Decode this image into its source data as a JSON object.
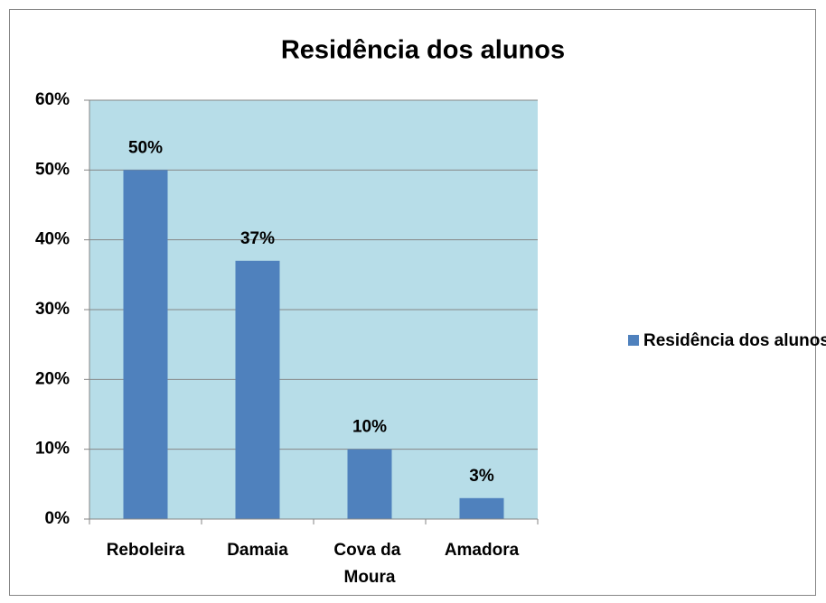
{
  "chart_data": {
    "type": "bar",
    "title": "Residência dos alunos",
    "categories": [
      "Reboleira",
      "Damaia",
      "Cova da Moura",
      "Amadora"
    ],
    "series": [
      {
        "name": "Residência dos alunos",
        "color": "#4f81bd",
        "values": [
          50,
          37,
          10,
          3
        ],
        "value_labels": [
          "50%",
          "37%",
          "10%",
          "3%"
        ]
      }
    ],
    "ylim": [
      0,
      60
    ],
    "yticks": [
      {
        "value": 0,
        "label": "0%"
      },
      {
        "value": 10,
        "label": "10%"
      },
      {
        "value": 20,
        "label": "20%"
      },
      {
        "value": 30,
        "label": "30%"
      },
      {
        "value": 40,
        "label": "40%"
      },
      {
        "value": 50,
        "label": "50%"
      },
      {
        "value": 60,
        "label": "60%"
      }
    ],
    "grid": true,
    "legend": "right",
    "plot_background": "#b7dde8"
  }
}
